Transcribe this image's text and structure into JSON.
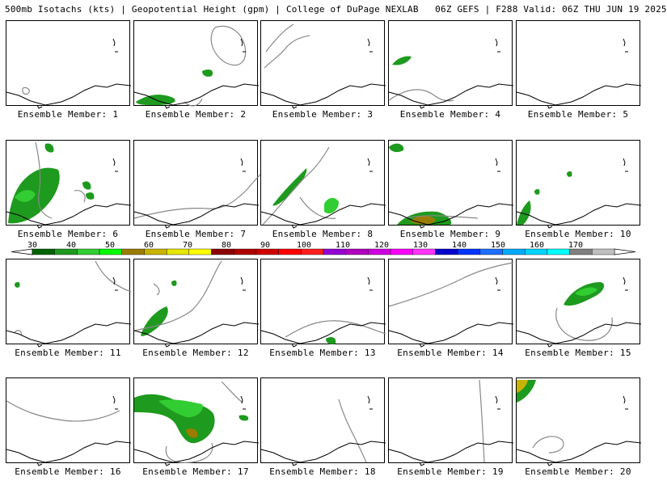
{
  "header": {
    "title": "500mb Isotachs (kts) | Geopotential Height (gpm) | College of DuPage NEXLAB",
    "run_info": "06Z GEFS | F288 Valid: 06Z THU JUN 19 2025"
  },
  "panels": [
    {
      "label": "Ensemble Member: 1"
    },
    {
      "label": "Ensemble Member: 2"
    },
    {
      "label": "Ensemble Member: 3"
    },
    {
      "label": "Ensemble Member: 4"
    },
    {
      "label": "Ensemble Member: 5"
    },
    {
      "label": "Ensemble Member: 6"
    },
    {
      "label": "Ensemble Member: 7"
    },
    {
      "label": "Ensemble Member: 8"
    },
    {
      "label": "Ensemble Member: 9"
    },
    {
      "label": "Ensemble Member: 10"
    },
    {
      "label": "Ensemble Member: 11"
    },
    {
      "label": "Ensemble Member: 12"
    },
    {
      "label": "Ensemble Member: 13"
    },
    {
      "label": "Ensemble Member: 14"
    },
    {
      "label": "Ensemble Member: 15"
    },
    {
      "label": "Ensemble Member: 16"
    },
    {
      "label": "Ensemble Member: 17"
    },
    {
      "label": "Ensemble Member: 18"
    },
    {
      "label": "Ensemble Member: 19"
    },
    {
      "label": "Ensemble Member: 20"
    }
  ],
  "colorbar": {
    "ticks": [
      "30",
      "40",
      "50",
      "60",
      "70",
      "80",
      "90",
      "100",
      "110",
      "120",
      "130",
      "140",
      "150",
      "160",
      "170"
    ],
    "colors": [
      "#006400",
      "#1e9a1e",
      "#32cd32",
      "#00ff00",
      "#9a7d00",
      "#c8b400",
      "#e6e600",
      "#ffff00",
      "#8b0000",
      "#b00000",
      "#d00000",
      "#ff0000",
      "#ff1e1e",
      "#9400d3",
      "#b000c0",
      "#d000e0",
      "#ff00ff",
      "#ff33ff",
      "#0000cd",
      "#0033ff",
      "#1e6eff",
      "#00aaff",
      "#00d4ff",
      "#00ffff",
      "#808080",
      "#c0c0c0"
    ]
  }
}
